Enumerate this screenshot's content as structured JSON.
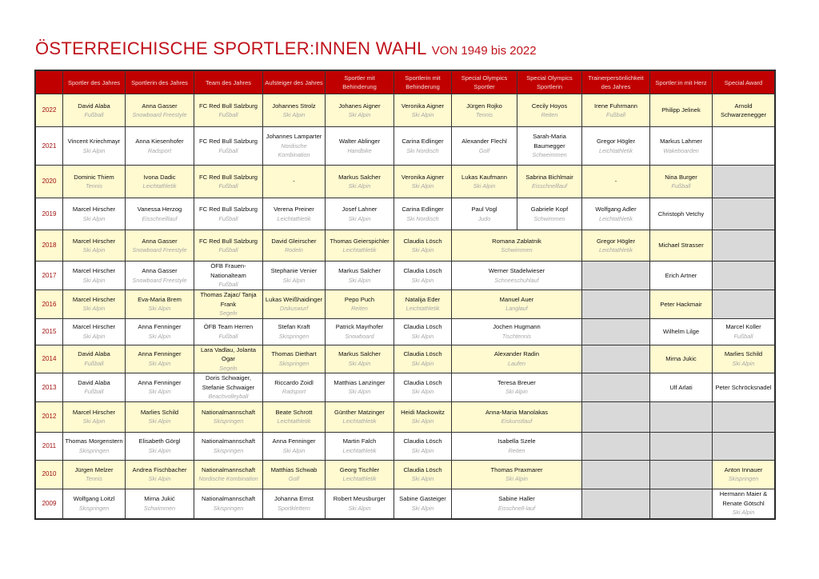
{
  "title": {
    "main": "ÖSTERREICHISCHE SPORTLER:INNEN WAHL",
    "sub": "VON 1949 bis 2022"
  },
  "colors": {
    "header": "#c00000",
    "title": "#c0121b",
    "row_highlight": "#fffad0",
    "empty_cell": "#d9d9d9",
    "sport_text": "#a6a6a6"
  },
  "headers": [
    "",
    "Sportler des Jahres",
    "Sportlerin des Jahres",
    "Team des Jahres",
    "Aufsteiger des Jahres",
    "Sportler mit Behinderung",
    "Sportlerin mit Behinderung",
    "Special Olympics Sportler",
    "Special Olympics Sportlerin",
    "Trainerpersönlichkeit des Jahres",
    "Sportler:in mit Herz",
    "Special Award"
  ],
  "rows": [
    {
      "year": "2022",
      "style": "y",
      "cells": [
        [
          "David Alaba",
          "Fußball"
        ],
        [
          "Anna Gasser",
          "Snowboard Freestyle"
        ],
        [
          "FC Red Bull Salzburg",
          "Fußball"
        ],
        [
          "Johannes Strolz",
          "Ski Alpin"
        ],
        [
          "Johanes Aigner",
          "Ski Alpin"
        ],
        [
          "Veronika Aigner",
          "Ski Alpin"
        ],
        [
          "Jürgen Rojko",
          "Tennis"
        ],
        [
          "Cecily Hoyos",
          "Reiten"
        ],
        [
          "Irene Fuhrmann",
          "Fußball"
        ],
        [
          "Philipp Jelinek",
          ""
        ],
        [
          "Arnold Schwarzenegger",
          ""
        ]
      ]
    },
    {
      "year": "2021",
      "style": "w",
      "cells": [
        [
          "Vincent Kriechmayr",
          "Ski Alpin"
        ],
        [
          "Anna Kiesenhofer",
          "Radsport"
        ],
        [
          "FC Red Bull Salzburg",
          "Fußball"
        ],
        [
          "Johannes Lamparter",
          "Nordische Kombination"
        ],
        [
          "Walter Ablinger",
          "Handbike"
        ],
        [
          "Carina Edlinger",
          "Ski Nordisch"
        ],
        [
          "Alexander Flechl",
          "Golf"
        ],
        [
          "Sarah-Maria Baumegger",
          "Schweimmen"
        ],
        [
          "Gregor Högler",
          "Leichtathletik"
        ],
        [
          "Markus Lahmer",
          "Wakeboarden"
        ],
        [
          "",
          ""
        ]
      ]
    },
    {
      "year": "2020",
      "style": "y",
      "cells": [
        [
          "Dominic Thiem",
          "Tennis"
        ],
        [
          "Ivona Dadic",
          "Leichtathletik"
        ],
        [
          "FC Red Bull Salzburg",
          "Fußball"
        ],
        [
          "-",
          ""
        ],
        [
          "Markus Salcher",
          "Ski Alpin"
        ],
        [
          "Veronika Aigner",
          "Ski Alpin"
        ],
        [
          "Lukas Kaufmann",
          "Ski Alpin"
        ],
        [
          "Sabrina Bichlmair",
          "Eisschnelllauf"
        ],
        [
          "-",
          ""
        ],
        [
          "Nina Burger",
          "Fußball"
        ],
        "gray"
      ]
    },
    {
      "year": "2019",
      "style": "w",
      "cells": [
        [
          "Marcel Hirscher",
          "Ski Alpin"
        ],
        [
          "Vanessa Herzog",
          "Eisschnelllauf"
        ],
        [
          "FC Red Bull Salzburg",
          "Fußball"
        ],
        [
          "Verena Preiner",
          "Leichtathletik"
        ],
        [
          "Josef Lahner",
          "Ski Alpin"
        ],
        [
          "Carina Edlinger",
          "Ski Nordisch"
        ],
        [
          "Paul Vogl",
          "Judo"
        ],
        [
          "Gabriele Kopf",
          "Schwimmen"
        ],
        [
          "Wolfgang Adler",
          "Leichtathletik"
        ],
        [
          "Christoph Vetchy",
          ""
        ],
        "gray"
      ]
    },
    {
      "year": "2018",
      "style": "y",
      "cells": [
        [
          "Marcel Hirscher",
          "Ski Alpin"
        ],
        [
          "Anna Gasser",
          "Snowboard Freestyle"
        ],
        [
          "FC Red Bull Salzburg",
          "Fußball"
        ],
        [
          "David Gleirscher",
          "Rodeln"
        ],
        [
          "Thomas Geierspichler",
          "Leichtathletik"
        ],
        [
          "Claudia Lösch",
          "Ski Alpin"
        ],
        [
          "Romana Zablatnik",
          "Schwimmen",
          2
        ],
        [
          "Gregor Högler",
          "Leichtathletik"
        ],
        [
          "Michael Strasser",
          ""
        ],
        "gray"
      ]
    },
    {
      "year": "2017",
      "style": "w",
      "cells": [
        [
          "Marcel Hirscher",
          "Ski Alpin"
        ],
        [
          "Anna Gasser",
          "Snowboard Freestyle"
        ],
        [
          "ÖFB Frauen-Nationalteam",
          "Fußball"
        ],
        [
          "Stephanie Venier",
          "Ski Alpin"
        ],
        [
          "Markus Salcher",
          "Ski Alpin"
        ],
        [
          "Claudia Lösch",
          "Ski Alpin"
        ],
        [
          "Werner Stadelwieser",
          "Schneeschuhlauf",
          2
        ],
        "gray",
        [
          "Erich Artner",
          ""
        ],
        "gray"
      ]
    },
    {
      "year": "2016",
      "style": "y",
      "cells": [
        [
          "Marcel Hirscher",
          "Ski Alpin"
        ],
        [
          "Eva-Maria Brem",
          "Ski Alpin"
        ],
        [
          "Thomas Zajac/ Tanja Frank",
          "Segeln"
        ],
        [
          "Lukas Weißhaidinger",
          "Diskuswurf"
        ],
        [
          "Pepo Puch",
          "Reiten"
        ],
        [
          "Natalija Eder",
          "Leichtathletik"
        ],
        [
          "Manuel Auer",
          "Langlauf",
          2
        ],
        "gray",
        [
          "Peter Hackmair",
          ""
        ],
        "gray"
      ]
    },
    {
      "year": "2015",
      "style": "w",
      "cells": [
        [
          "Marcel Hirscher",
          "Ski Alpin"
        ],
        [
          "Anna Fenninger",
          "Ski Alpin"
        ],
        [
          "ÖFB Team Herren",
          "Fußball"
        ],
        [
          "Stefan Kraft",
          "Skispringen"
        ],
        [
          "Patrick Mayrhofer",
          "Snowboard"
        ],
        [
          "Claudia Lösch",
          "Ski Alpin"
        ],
        [
          "Jochen Hugmann",
          "Tischtennis",
          2
        ],
        "gray",
        [
          "Wilhelm Lilge",
          ""
        ],
        [
          "Marcel Koller",
          "Fußball"
        ]
      ]
    },
    {
      "year": "2014",
      "style": "y",
      "cells": [
        [
          "David Alaba",
          "Fußball"
        ],
        [
          "Anna Fenninger",
          "Ski Alpin"
        ],
        [
          "Lara Vadlau, Jolanta Ogar",
          "Segeln"
        ],
        [
          "Thomas Diethart",
          "Skispringen"
        ],
        [
          "Markus Salcher",
          "Ski Alpin"
        ],
        [
          "Claudia Lösch",
          "Ski Alpin"
        ],
        [
          "Alexander Radin",
          "Laufen",
          2
        ],
        "gray",
        [
          "Mirna Jukic",
          ""
        ],
        [
          "Marlies Schild",
          "Ski Alpin"
        ]
      ]
    },
    {
      "year": "2013",
      "style": "w",
      "cells": [
        [
          "David Alaba",
          "Fußball"
        ],
        [
          "Anna Fenninger",
          "Ski Alpin"
        ],
        [
          "Doris Schwaiger, Stefanie Schwaiger",
          "Beachvolleyball"
        ],
        [
          "Riccardo Zoidl",
          "Radsport"
        ],
        [
          "Matthias Lanzinger",
          "Ski Alpin"
        ],
        [
          "Claudia Lösch",
          "Ski Alpin"
        ],
        [
          "Teresa Breuer",
          "Ski Alpin",
          2
        ],
        "gray",
        [
          "Ulf Arlati",
          ""
        ],
        [
          "Peter Schröcksnadel",
          ""
        ]
      ]
    },
    {
      "year": "2012",
      "style": "y",
      "cells": [
        [
          "Marcel Hirscher",
          "Ski Alpin"
        ],
        [
          "Marlies Schild",
          "Ski Alpin"
        ],
        [
          "Nationalmannschaft",
          "Skispringen"
        ],
        [
          "Beate Schrott",
          "Leichtathletik"
        ],
        [
          "Günther Matzinger",
          "Leichtathletik"
        ],
        [
          "Heidi Mackowitz",
          "Ski Alpin"
        ],
        [
          "Anna-Maria Manolakas",
          "Eiskunstlauf",
          2
        ],
        "gray",
        "gray",
        "gray"
      ]
    },
    {
      "year": "2011",
      "style": "w",
      "cells": [
        [
          "Thomas Morgenstern",
          "Skispringen"
        ],
        [
          "Elisabeth Görgl",
          "Ski Alpin"
        ],
        [
          "Nationalmannschaft",
          "Skispringen"
        ],
        [
          "Anna Fenninger",
          "Ski Alpin"
        ],
        [
          "Martin Falch",
          "Leichtathletik"
        ],
        [
          "Claudia Lösch",
          "Ski Alpin"
        ],
        [
          "Isabella Szele",
          "Reiten",
          2
        ],
        "gray",
        "gray",
        "gray"
      ]
    },
    {
      "year": "2010",
      "style": "y",
      "cells": [
        [
          "Jürgen Melzer",
          "Tennis"
        ],
        [
          "Andrea Fischbacher",
          "Ski Alpin"
        ],
        [
          "Nationalmannschaft",
          "Nordische Kombination"
        ],
        [
          "Matthias Schwab",
          "Golf"
        ],
        [
          "Georg Tischler",
          "Leichtathletik"
        ],
        [
          "Claudia Lösch",
          "Ski Alpin"
        ],
        [
          "Thomas Praxmarer",
          "Ski Alpin",
          2
        ],
        "gray",
        "gray",
        [
          "Anton Innauer",
          "Skispringen"
        ]
      ]
    },
    {
      "year": "2009",
      "style": "w",
      "cells": [
        [
          "Wolfgang Loitzl",
          "Skispringen"
        ],
        [
          "Mirna Jukić",
          "Schwimmen"
        ],
        [
          "Nationalmannschaft",
          "Skispringen"
        ],
        [
          "Johanna Ernst",
          "Sportklettern"
        ],
        [
          "Robert Meusburger",
          "Ski Alpin"
        ],
        [
          "Sabine Gasteiger",
          "Ski Alpin"
        ],
        [
          "Sabine Haller",
          "Eisschnell-lauf",
          2
        ],
        "gray",
        "gray",
        [
          "Hermann Maier & Renate Götschl",
          "Ski Alpin"
        ]
      ]
    }
  ]
}
